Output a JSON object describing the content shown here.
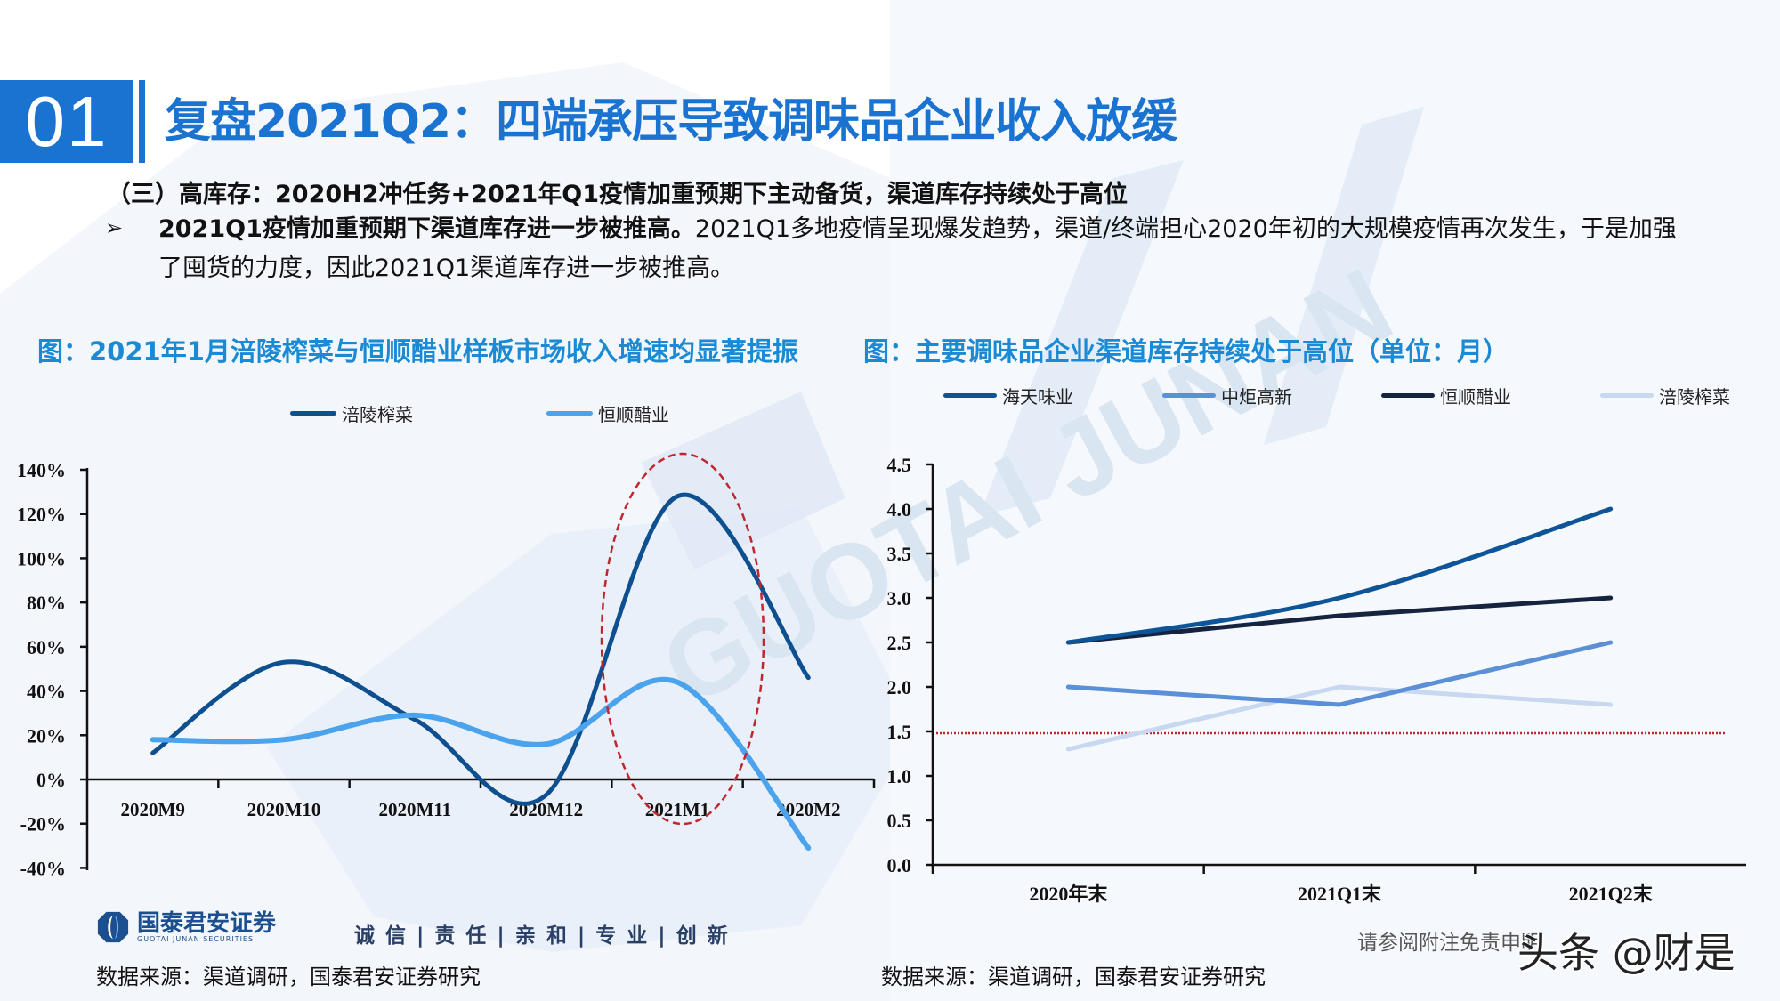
{
  "header": {
    "section_number": "01",
    "title": "复盘2021Q2：四端承压导致调味品企业收入放缓"
  },
  "body": {
    "subhead": "（三）高库存：2020H2冲任务+2021年Q1疫情加重预期下主动备货，渠道库存持续处于高位",
    "bullet_marker": "➢",
    "bullet_bold": "2021Q1疫情加重预期下渠道库存进一步被推高。",
    "bullet_rest": "2021Q1多地疫情呈现爆发趋势，渠道/终端担心2020年初的大规模疫情再次发生，于是加强了囤货的力度，因此2021Q1渠道库存进一步被推高。"
  },
  "figures": {
    "left_title": "图：2021年1月涪陵榨菜与恒顺醋业样板市场收入增速均显著提振",
    "right_title": "图：主要调味品企业渠道库存持续处于高位（单位：月）"
  },
  "chart_data": [
    {
      "type": "line",
      "title": "图：2021年1月涪陵榨菜与恒顺醋业样板市场收入增速均显著提振",
      "categories": [
        "2020M9",
        "2020M10",
        "2020M11",
        "2020M12",
        "2021M1",
        "2020M2"
      ],
      "series": [
        {
          "name": "涪陵榨菜",
          "color": "#0e4f8f",
          "values": [
            12,
            53,
            27,
            -7,
            128,
            46
          ]
        },
        {
          "name": "恒顺醋业",
          "color": "#4aa3ec",
          "values": [
            18,
            18,
            29,
            16,
            44,
            -31
          ]
        }
      ],
      "xlabel": "",
      "ylabel": "",
      "yticks": [
        "140%",
        "120%",
        "100%",
        "80%",
        "60%",
        "40%",
        "20%",
        "0%",
        "-20%",
        "-40%"
      ],
      "ylim": [
        -40,
        140
      ],
      "unit": "%",
      "smooth": true,
      "grid": false,
      "legend_position": "top",
      "annotations": [
        {
          "type": "dashed-ellipse",
          "color": "#c0262d",
          "target": "2021M1"
        }
      ]
    },
    {
      "type": "line",
      "title": "图：主要调味品企业渠道库存持续处于高位（单位：月）",
      "categories": [
        "2020年末",
        "2021Q1末",
        "2021Q2末"
      ],
      "series": [
        {
          "name": "海天味业",
          "color": "#0e5598",
          "values": [
            2.5,
            3.0,
            4.0
          ]
        },
        {
          "name": "中炬高新",
          "color": "#5b8fd6",
          "values": [
            2.0,
            1.8,
            2.5
          ]
        },
        {
          "name": "恒顺醋业",
          "color": "#15233f",
          "values": [
            2.5,
            2.8,
            3.0
          ]
        },
        {
          "name": "涪陵榨菜",
          "color": "#c7d8f0",
          "values": [
            1.3,
            2.0,
            1.8
          ]
        }
      ],
      "xlabel": "",
      "ylabel": "",
      "yticks": [
        "4.5",
        "4.0",
        "3.5",
        "3.0",
        "2.5",
        "2.0",
        "1.5",
        "1.0",
        "0.5",
        "0.0"
      ],
      "ylim": [
        0,
        4.5
      ],
      "unit": "月",
      "grid": false,
      "legend_position": "top",
      "annotations": [
        {
          "type": "dotted-hline",
          "color": "#c0262d",
          "y": 1.5
        }
      ]
    }
  ],
  "footer": {
    "source_left": "数据来源：渠道调研，国泰君安证券研究",
    "source_right": "数据来源：渠道调研，国泰君安证券研究",
    "logo_cn": "国泰君安证券",
    "logo_en": "GUOTAI JUNAN SECURITIES",
    "slogan": "诚 信 | 责 任 | 亲 和 | 专 业 | 创 新",
    "disclaimer": "请参阅附注免责申明",
    "watermark": "头条 @财是"
  },
  "colors": {
    "brand_blue": "#1a73d0",
    "figure_title_blue": "#1a8ad4",
    "highlight_red": "#c0262d"
  }
}
